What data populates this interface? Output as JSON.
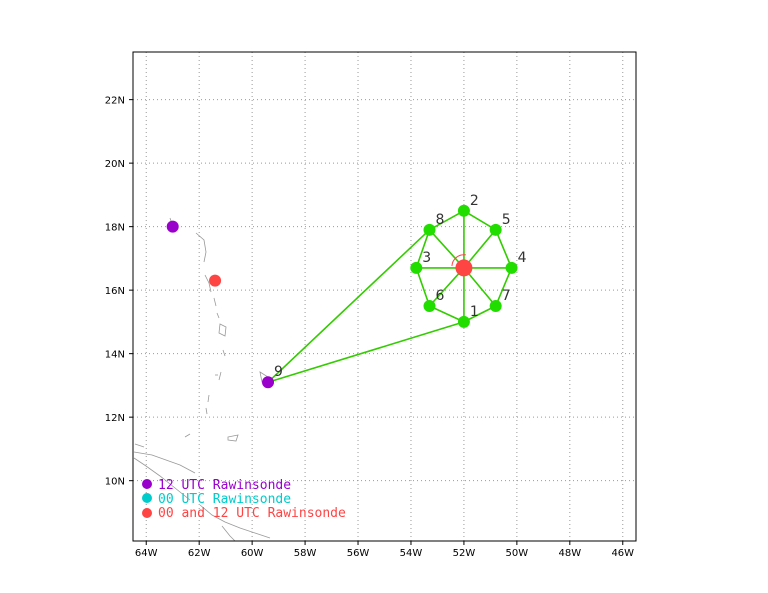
{
  "axes": {
    "lon_ticks": [
      "64W",
      "62W",
      "60W",
      "58W",
      "56W",
      "54W",
      "52W",
      "50W",
      "48W",
      "46W"
    ],
    "lat_ticks": [
      "10N",
      "12N",
      "14N",
      "16N",
      "18N",
      "20N",
      "22N"
    ],
    "lon_range": [
      -64.5,
      -45.5
    ],
    "lat_range": [
      8.1,
      23.5
    ],
    "grid": "dotted"
  },
  "center": {
    "lon": -52.0,
    "lat": 16.7,
    "color": "#ff4444"
  },
  "stations": [
    {
      "label": "1",
      "lon": -52.0,
      "lat": 15.0
    },
    {
      "label": "2",
      "lon": -52.0,
      "lat": 18.5
    },
    {
      "label": "3",
      "lon": -53.8,
      "lat": 16.7
    },
    {
      "label": "4",
      "lon": -50.2,
      "lat": 16.7
    },
    {
      "label": "5",
      "lon": -50.8,
      "lat": 17.9
    },
    {
      "label": "6",
      "lon": -53.3,
      "lat": 15.5
    },
    {
      "label": "7",
      "lon": -50.8,
      "lat": 15.5
    },
    {
      "label": "8",
      "lon": -53.3,
      "lat": 17.9
    },
    {
      "label": "9",
      "lon": -59.4,
      "lat": 13.1
    }
  ],
  "links": [
    [
      "center",
      "1"
    ],
    [
      "center",
      "2"
    ],
    [
      "center",
      "3"
    ],
    [
      "center",
      "4"
    ],
    [
      "center",
      "5"
    ],
    [
      "center",
      "6"
    ],
    [
      "center",
      "7"
    ],
    [
      "center",
      "8"
    ],
    [
      "1",
      "6"
    ],
    [
      "1",
      "7"
    ],
    [
      "2",
      "8"
    ],
    [
      "2",
      "5"
    ],
    [
      "3",
      "8"
    ],
    [
      "3",
      "6"
    ],
    [
      "4",
      "5"
    ],
    [
      "4",
      "7"
    ],
    [
      "9",
      "8"
    ],
    [
      "9",
      "1"
    ]
  ],
  "rawinsondes": [
    {
      "type": "12",
      "lon": -63.0,
      "lat": 18.0
    },
    {
      "type": "00and12",
      "lon": -61.4,
      "lat": 16.3
    },
    {
      "type": "12",
      "lon": -59.4,
      "lat": 13.1
    }
  ],
  "legend": [
    {
      "label": "12 UTC Rawinsonde",
      "color": "#9900cc"
    },
    {
      "label": "00 UTC Rawinsonde",
      "color": "#00cccc"
    },
    {
      "label": "00 and 12 UTC Rawinsonde",
      "color": "#ff4444"
    }
  ],
  "colors": {
    "dropsonde": "#22dd00",
    "link": "#33cc00",
    "coast": "#999999",
    "type_12": "#9900cc",
    "type_00and12": "#ff4444"
  }
}
